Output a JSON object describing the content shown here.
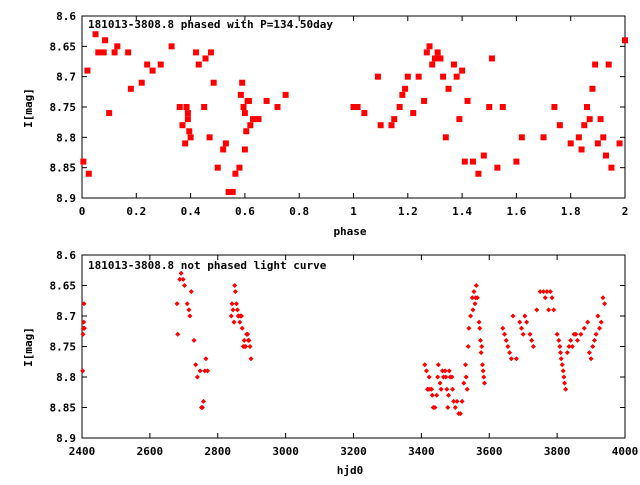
{
  "colors": {
    "points": "#ff0000",
    "axes": "#000000",
    "background": "#ffffff"
  },
  "chart_data": [
    {
      "type": "scatter",
      "title": "181013-3808.8 phased with P=134.50day",
      "xlabel": "phase",
      "ylabel": "I[mag]",
      "xlim": [
        0,
        2
      ],
      "ylim": [
        8.6,
        8.9
      ],
      "y_inverted": true,
      "grid": false,
      "marker": "filled-square",
      "xticks": [
        "0",
        "0.2",
        "0.4",
        "0.6",
        "0.8",
        "1",
        "1.2",
        "1.4",
        "1.6",
        "1.8",
        "2"
      ],
      "yticks": [
        "8.6",
        "8.65",
        "8.7",
        "8.75",
        "8.8",
        "8.85",
        "8.9"
      ],
      "x": [
        0.005,
        0.02,
        0.025,
        0.05,
        0.06,
        0.08,
        0.085,
        0.1,
        0.12,
        0.13,
        0.17,
        0.18,
        0.22,
        0.24,
        0.26,
        0.29,
        0.33,
        0.36,
        0.37,
        0.38,
        0.385,
        0.39,
        0.39,
        0.395,
        0.4,
        0.42,
        0.43,
        0.45,
        0.455,
        0.47,
        0.475,
        0.485,
        0.5,
        0.52,
        0.53,
        0.54,
        0.555,
        0.565,
        0.58,
        0.585,
        0.59,
        0.595,
        0.6,
        0.6,
        0.605,
        0.61,
        0.615,
        0.62,
        0.63,
        0.65,
        0.68,
        0.72,
        0.75,
        1.0,
        1.015,
        1.04,
        1.09,
        1.1,
        1.14,
        1.15,
        1.17,
        1.18,
        1.19,
        1.2,
        1.22,
        1.24,
        1.26,
        1.27,
        1.28,
        1.29,
        1.3,
        1.31,
        1.32,
        1.33,
        1.34,
        1.35,
        1.37,
        1.38,
        1.39,
        1.4,
        1.41,
        1.42,
        1.44,
        1.46,
        1.48,
        1.5,
        1.51,
        1.53,
        1.55,
        1.6,
        1.62,
        1.7,
        1.74,
        1.76,
        1.8,
        1.83,
        1.84,
        1.85,
        1.86,
        1.87,
        1.88,
        1.89,
        1.9,
        1.91,
        1.92,
        1.93,
        1.94,
        1.95,
        1.98,
        2.0
      ],
      "y": [
        8.84,
        8.69,
        8.86,
        8.63,
        8.66,
        8.66,
        8.64,
        8.76,
        8.66,
        8.65,
        8.66,
        8.72,
        8.71,
        8.68,
        8.69,
        8.68,
        8.65,
        8.75,
        8.78,
        8.81,
        8.75,
        8.76,
        8.77,
        8.79,
        8.8,
        8.66,
        8.68,
        8.75,
        8.67,
        8.8,
        8.66,
        8.71,
        8.85,
        8.82,
        8.81,
        8.89,
        8.89,
        8.86,
        8.85,
        8.73,
        8.71,
        8.75,
        8.82,
        8.76,
        8.79,
        8.74,
        8.74,
        8.78,
        8.77,
        8.77,
        8.74,
        8.75,
        8.73,
        8.75,
        8.75,
        8.76,
        8.7,
        8.78,
        8.78,
        8.77,
        8.75,
        8.73,
        8.72,
        8.7,
        8.76,
        8.7,
        8.74,
        8.66,
        8.65,
        8.68,
        8.67,
        8.66,
        8.67,
        8.7,
        8.8,
        8.72,
        8.68,
        8.7,
        8.77,
        8.69,
        8.84,
        8.74,
        8.84,
        8.86,
        8.83,
        8.75,
        8.67,
        8.85,
        8.75,
        8.84,
        8.8,
        8.8,
        8.75,
        8.78,
        8.81,
        8.8,
        8.82,
        8.78,
        8.75,
        8.77,
        8.72,
        8.68,
        8.81,
        8.77,
        8.8,
        8.83,
        8.68,
        8.85,
        8.81,
        8.64
      ]
    },
    {
      "type": "scatter",
      "title": "181013-3808.8 not phased light curve",
      "xlabel": "hjd0",
      "ylabel": "I[mag]",
      "xlim": [
        2400,
        4000
      ],
      "ylim": [
        8.6,
        8.9
      ],
      "y_inverted": true,
      "grid": false,
      "marker": "diamond",
      "xticks": [
        "2400",
        "2600",
        "2800",
        "3000",
        "3200",
        "3400",
        "3600",
        "3800",
        "4000"
      ],
      "yticks": [
        "8.6",
        "8.65",
        "8.7",
        "8.75",
        "8.8",
        "8.85",
        "8.9"
      ],
      "x": [
        2402,
        2403,
        2404,
        2405,
        2406,
        2407,
        2680,
        2682,
        2688,
        2692,
        2698,
        2702,
        2710,
        2715,
        2718,
        2722,
        2730,
        2735,
        2740,
        2748,
        2752,
        2755,
        2758,
        2762,
        2765,
        2770,
        2840,
        2842,
        2845,
        2848,
        2850,
        2852,
        2855,
        2858,
        2860,
        2862,
        2865,
        2868,
        2870,
        2872,
        2875,
        2878,
        2880,
        2882,
        2885,
        2888,
        2890,
        2892,
        2895,
        2898,
        3410,
        3415,
        3418,
        3420,
        3423,
        3425,
        3430,
        3432,
        3435,
        3440,
        3445,
        3448,
        3450,
        3455,
        3458,
        3462,
        3465,
        3470,
        3472,
        3475,
        3478,
        3480,
        3482,
        3485,
        3490,
        3492,
        3495,
        3500,
        3505,
        3510,
        3515,
        3520,
        3525,
        3530,
        3532,
        3535,
        3538,
        3540,
        3545,
        3550,
        3552,
        3555,
        3558,
        3560,
        3562,
        3565,
        3570,
        3572,
        3574,
        3576,
        3578,
        3580,
        3582,
        3584,
        3586,
        3640,
        3645,
        3650,
        3655,
        3660,
        3665,
        3670,
        3680,
        3690,
        3695,
        3700,
        3705,
        3710,
        3720,
        3725,
        3730,
        3740,
        3750,
        3760,
        3765,
        3770,
        3775,
        3780,
        3785,
        3790,
        3800,
        3805,
        3808,
        3810,
        3812,
        3815,
        3818,
        3820,
        3822,
        3825,
        3830,
        3835,
        3840,
        3845,
        3850,
        3855,
        3860,
        3870,
        3880,
        3890,
        3895,
        3900,
        3905,
        3910,
        3915,
        3920,
        3925,
        3930,
        3935,
        3940
      ],
      "y": [
        8.79,
        8.73,
        8.72,
        8.71,
        8.68,
        8.72,
        8.68,
        8.73,
        8.64,
        8.63,
        8.64,
        8.65,
        8.68,
        8.69,
        8.7,
        8.66,
        8.74,
        8.78,
        8.8,
        8.79,
        8.85,
        8.85,
        8.84,
        8.79,
        8.77,
        8.79,
        8.7,
        8.68,
        8.69,
        8.71,
        8.65,
        8.66,
        8.68,
        8.69,
        8.7,
        8.7,
        8.71,
        8.7,
        8.7,
        8.72,
        8.75,
        8.74,
        8.75,
        8.75,
        8.73,
        8.73,
        8.74,
        8.74,
        8.75,
        8.77,
        8.78,
        8.79,
        8.82,
        8.82,
        8.8,
        8.82,
        8.82,
        8.83,
        8.85,
        8.85,
        8.83,
        8.8,
        8.78,
        8.81,
        8.82,
        8.79,
        8.8,
        8.79,
        8.8,
        8.82,
        8.85,
        8.83,
        8.79,
        8.8,
        8.8,
        8.82,
        8.84,
        8.85,
        8.84,
        8.86,
        8.86,
        8.84,
        8.81,
        8.78,
        8.8,
        8.82,
        8.75,
        8.72,
        8.7,
        8.67,
        8.69,
        8.66,
        8.68,
        8.67,
        8.65,
        8.67,
        8.71,
        8.72,
        8.74,
        8.76,
        8.75,
        8.78,
        8.79,
        8.8,
        8.81,
        8.72,
        8.73,
        8.74,
        8.75,
        8.76,
        8.77,
        8.7,
        8.77,
        8.71,
        8.72,
        8.73,
        8.7,
        8.71,
        8.73,
        8.74,
        8.75,
        8.69,
        8.66,
        8.66,
        8.67,
        8.66,
        8.69,
        8.66,
        8.67,
        8.69,
        8.73,
        8.74,
        8.75,
        8.76,
        8.77,
        8.78,
        8.79,
        8.8,
        8.81,
        8.82,
        8.76,
        8.75,
        8.74,
        8.75,
        8.73,
        8.73,
        8.74,
        8.73,
        8.72,
        8.71,
        8.76,
        8.77,
        8.75,
        8.74,
        8.73,
        8.7,
        8.72,
        8.71,
        8.67,
        8.68
      ]
    }
  ]
}
